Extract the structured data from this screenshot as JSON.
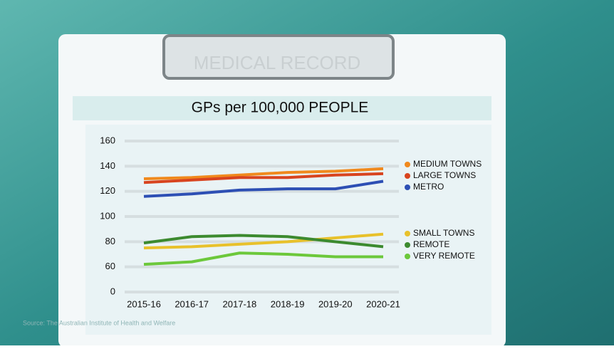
{
  "chart_data": {
    "type": "line",
    "title": "GPs per 100,000 PEOPLE",
    "header": "MEDICAL RECORD",
    "source": "Source: The Australian Institute of Health and Welfare",
    "categories": [
      "2015-16",
      "2016-17",
      "2017-18",
      "2018-19",
      "2019-20",
      "2020-21"
    ],
    "series": [
      {
        "name": "MEDIUM TOWNS",
        "color": "#f0891d",
        "values": [
          130,
          131,
          133,
          135,
          136,
          138
        ]
      },
      {
        "name": "LARGE TOWNS",
        "color": "#d8441f",
        "values": [
          127,
          129,
          131,
          131,
          133,
          134
        ]
      },
      {
        "name": "METRO",
        "color": "#2d4fb4",
        "values": [
          116,
          118,
          121,
          122,
          122,
          128
        ]
      },
      {
        "name": "SMALL TOWNS",
        "color": "#e8c12b",
        "values": [
          75,
          76,
          78,
          80,
          83,
          86
        ]
      },
      {
        "name": "REMOTE",
        "color": "#3c8a2f",
        "values": [
          79,
          84,
          85,
          84,
          80,
          76
        ]
      },
      {
        "name": "VERY REMOTE",
        "color": "#6cc83b",
        "values": [
          62,
          64,
          71,
          70,
          68,
          68
        ]
      }
    ],
    "ylim": [
      0,
      160
    ],
    "ybreak": [
      0,
      60
    ],
    "yticks": [
      0,
      60,
      80,
      100,
      120,
      140,
      160
    ],
    "grid": true
  }
}
